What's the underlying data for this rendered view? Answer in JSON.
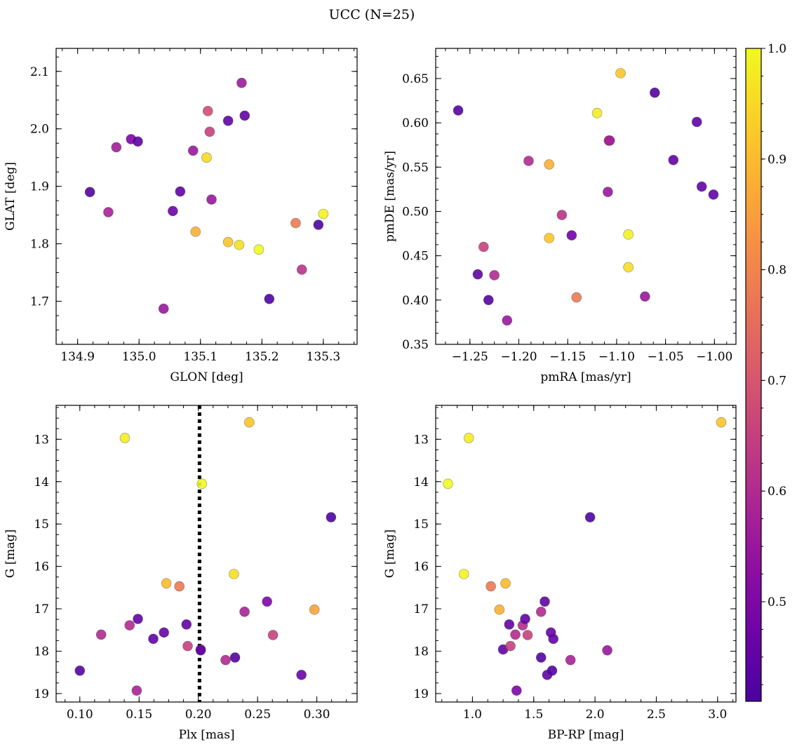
{
  "figure": {
    "title": "UCC (N=25)"
  },
  "colorbar": {
    "range": [
      0.41,
      1.0
    ],
    "ticks": [
      0.5,
      0.6,
      0.7,
      0.8,
      0.9,
      1.0
    ],
    "tick_labels": [
      "0.5",
      "0.6",
      "0.7",
      "0.8",
      "0.9",
      "1.0"
    ],
    "colormap": "plasma"
  },
  "chart_data": [
    {
      "type": "scatter",
      "xlabel": "GLON [deg]",
      "ylabel": "GLAT [deg]",
      "xlim": [
        134.865,
        135.355
      ],
      "ylim": [
        1.625,
        2.14
      ],
      "xticks": [
        134.9,
        135.0,
        135.1,
        135.2,
        135.3
      ],
      "xtick_labels": [
        "134.9",
        "135.0",
        "135.1",
        "135.2",
        "135.3"
      ],
      "yticks": [
        1.7,
        1.8,
        1.9,
        2.0,
        2.1
      ],
      "ytick_labels": [
        "1.7",
        "1.8",
        "1.9",
        "2.0",
        "2.1"
      ],
      "x_minor": 0.025,
      "y_minor": 0.025,
      "invert_y": false,
      "x": [
        134.92,
        134.95,
        134.963,
        134.987,
        134.998,
        135.04,
        135.055,
        135.067,
        135.088,
        135.092,
        135.11,
        135.112,
        135.115,
        135.118,
        135.145,
        135.145,
        135.163,
        135.167,
        135.172,
        135.195,
        135.212,
        135.255,
        135.265,
        135.292,
        135.3
      ],
      "y": [
        1.89,
        1.855,
        1.968,
        1.982,
        1.978,
        1.687,
        1.857,
        1.891,
        1.962,
        1.821,
        1.95,
        2.031,
        1.995,
        1.877,
        2.014,
        1.803,
        1.798,
        2.08,
        2.023,
        1.79,
        1.704,
        1.836,
        1.755,
        1.833,
        1.852
      ],
      "color_values": [
        0.43,
        0.58,
        0.57,
        0.5,
        0.44,
        0.55,
        0.47,
        0.45,
        0.55,
        0.88,
        0.95,
        0.68,
        0.65,
        0.55,
        0.45,
        0.92,
        0.96,
        0.56,
        0.45,
        1.0,
        0.42,
        0.78,
        0.62,
        0.42,
        0.99
      ]
    },
    {
      "type": "scatter",
      "xlabel": "pmRA [mas/yr]",
      "ylabel": "pmDE [mas/yr]",
      "xlim": [
        -1.285,
        -0.978
      ],
      "ylim": [
        0.35,
        0.684
      ],
      "xticks": [
        -1.25,
        -1.2,
        -1.15,
        -1.1,
        -1.05,
        -1.0
      ],
      "xtick_labels": [
        "−1.25",
        "−1.20",
        "−1.15",
        "−1.10",
        "−1.05",
        "−1.00"
      ],
      "yticks": [
        0.35,
        0.4,
        0.45,
        0.5,
        0.55,
        0.6,
        0.65
      ],
      "ytick_labels": [
        "0.35",
        "0.40",
        "0.45",
        "0.50",
        "0.55",
        "0.60",
        "0.65"
      ],
      "x_minor": 0.0125,
      "y_minor": 0.0125,
      "invert_y": false,
      "x": [
        -1.262,
        -1.242,
        -1.236,
        -1.231,
        -1.225,
        -1.212,
        -1.19,
        -1.169,
        -1.169,
        -1.156,
        -1.146,
        -1.141,
        -1.12,
        -1.109,
        -1.108,
        -1.107,
        -1.096,
        -1.088,
        -1.088,
        -1.071,
        -1.061,
        -1.042,
        -1.018,
        -1.013,
        -1.001
      ],
      "y": [
        0.614,
        0.429,
        0.46,
        0.4,
        0.428,
        0.377,
        0.557,
        0.553,
        0.47,
        0.496,
        0.473,
        0.403,
        0.611,
        0.522,
        0.58,
        0.58,
        0.656,
        0.474,
        0.437,
        0.404,
        0.634,
        0.558,
        0.601,
        0.528,
        0.519
      ],
      "color_values": [
        0.43,
        0.45,
        0.65,
        0.43,
        0.6,
        0.55,
        0.6,
        0.88,
        0.92,
        0.62,
        0.48,
        0.78,
        0.98,
        0.55,
        0.62,
        0.57,
        0.92,
        0.99,
        0.96,
        0.55,
        0.43,
        0.45,
        0.45,
        0.45,
        0.45
      ]
    },
    {
      "type": "scatter",
      "xlabel": "Plx [mas]",
      "ylabel": "G [mag]",
      "xlim": [
        0.08,
        0.334
      ],
      "ylim": [
        19.2,
        12.2
      ],
      "xticks": [
        0.1,
        0.15,
        0.2,
        0.25,
        0.3
      ],
      "xtick_labels": [
        "0.10",
        "0.15",
        "0.20",
        "0.25",
        "0.30"
      ],
      "yticks": [
        13,
        14,
        15,
        16,
        17,
        18,
        19
      ],
      "ytick_labels": [
        "13",
        "14",
        "15",
        "16",
        "17",
        "18",
        "19"
      ],
      "x_minor": 0.0125,
      "y_minor": 0.25,
      "invert_y": true,
      "vline": {
        "x": 0.201,
        "style": "dotted"
      },
      "x": [
        0.1,
        0.118,
        0.138,
        0.142,
        0.148,
        0.149,
        0.162,
        0.171,
        0.173,
        0.184,
        0.19,
        0.191,
        0.202,
        0.202,
        0.203,
        0.223,
        0.23,
        0.231,
        0.239,
        0.243,
        0.258,
        0.263,
        0.287,
        0.298,
        0.312
      ],
      "y": [
        18.46,
        17.61,
        12.97,
        17.39,
        18.93,
        17.24,
        17.71,
        17.56,
        16.4,
        16.47,
        17.37,
        17.88,
        17.96,
        17.98,
        14.05,
        18.21,
        16.18,
        18.15,
        17.07,
        12.6,
        16.83,
        17.62,
        18.56,
        17.02,
        14.84
      ],
      "color_values": [
        0.43,
        0.6,
        0.98,
        0.6,
        0.58,
        0.45,
        0.45,
        0.46,
        0.9,
        0.78,
        0.45,
        0.65,
        0.55,
        0.45,
        1.0,
        0.6,
        0.96,
        0.43,
        0.58,
        0.92,
        0.5,
        0.65,
        0.47,
        0.86,
        0.42
      ]
    },
    {
      "type": "scatter",
      "xlabel": "BP-RP [mag]",
      "ylabel": "G [mag]",
      "xlim": [
        0.7,
        3.15
      ],
      "ylim": [
        19.2,
        12.2
      ],
      "xticks": [
        1.0,
        1.5,
        2.0,
        2.5,
        3.0
      ],
      "xtick_labels": [
        "1.0",
        "1.5",
        "2.0",
        "2.5",
        "3.0"
      ],
      "yticks": [
        13,
        14,
        15,
        16,
        17,
        18,
        19
      ],
      "ytick_labels": [
        "13",
        "14",
        "15",
        "16",
        "17",
        "18",
        "19"
      ],
      "x_minor": 0.125,
      "y_minor": 0.25,
      "invert_y": true,
      "x": [
        0.8,
        0.93,
        0.97,
        1.15,
        1.22,
        1.25,
        1.27,
        1.3,
        1.31,
        1.35,
        1.36,
        1.41,
        1.43,
        1.45,
        1.56,
        1.56,
        1.59,
        1.61,
        1.64,
        1.65,
        1.66,
        1.8,
        1.96,
        2.1,
        3.03
      ],
      "y": [
        14.05,
        16.18,
        12.97,
        16.47,
        17.02,
        17.96,
        16.4,
        17.37,
        17.88,
        17.61,
        18.93,
        17.39,
        17.24,
        17.62,
        18.15,
        17.07,
        16.83,
        18.56,
        17.56,
        18.46,
        17.71,
        18.21,
        14.84,
        17.98,
        12.6
      ],
      "color_values": [
        1.0,
        0.99,
        0.98,
        0.78,
        0.88,
        0.45,
        0.9,
        0.45,
        0.65,
        0.6,
        0.5,
        0.6,
        0.45,
        0.65,
        0.43,
        0.6,
        0.45,
        0.45,
        0.46,
        0.43,
        0.45,
        0.58,
        0.42,
        0.55,
        0.92
      ]
    }
  ]
}
